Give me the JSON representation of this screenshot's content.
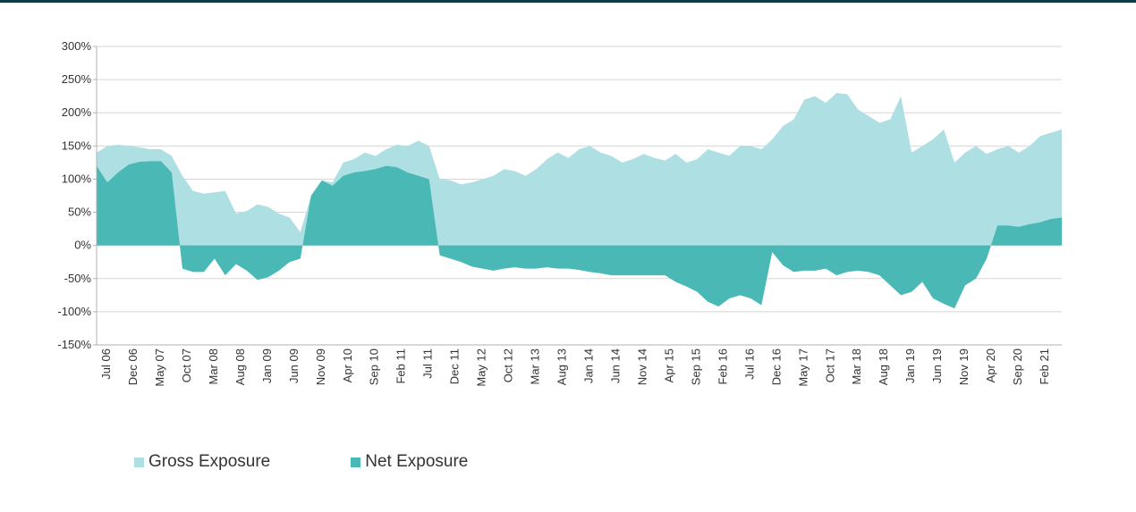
{
  "colors": {
    "gross": "#aee0e3",
    "net": "#4ab9b6",
    "axis": "#b0b0b0",
    "grid": "#d6d6d6",
    "top_rule": "#0e3a44"
  },
  "chart_data": {
    "type": "area",
    "title": "",
    "xlabel": "",
    "ylabel": "",
    "ylim": [
      -150,
      300
    ],
    "grid": true,
    "legend_position": "bottom-left",
    "y_ticks": [
      "300%",
      "250%",
      "200%",
      "150%",
      "100%",
      "50%",
      "0%",
      "-50%",
      "-100%",
      "-150%"
    ],
    "x_tick_labels": [
      "Jul 06",
      "Dec 06",
      "May 07",
      "Oct 07",
      "Mar 08",
      "Aug 08",
      "Jan 09",
      "Jun 09",
      "Nov 09",
      "Apr 10",
      "Sep 10",
      "Feb 11",
      "Jul 11",
      "Dec 11",
      "May 12",
      "Oct 12",
      "Mar 13",
      "Aug 13",
      "Jan 14",
      "Jun 14",
      "Nov 14",
      "Apr 15",
      "Sep 15",
      "Feb 16",
      "Jul 16",
      "Dec 16",
      "May 17",
      "Oct 17",
      "Mar 18",
      "Aug 18",
      "Jan 19",
      "Jun 19",
      "Nov 19",
      "Apr 20",
      "Sep 20",
      "Feb 21"
    ],
    "x": [
      "Jul 06",
      "Sep 06",
      "Nov 06",
      "Jan 07",
      "Mar 07",
      "May 07",
      "Jul 07",
      "Sep 07",
      "Nov 07",
      "Jan 08",
      "Mar 08",
      "May 08",
      "Jul 08",
      "Sep 08",
      "Nov 08",
      "Jan 09",
      "Mar 09",
      "May 09",
      "Jul 09",
      "Sep 09",
      "Nov 09",
      "Jan 10",
      "Mar 10",
      "May 10",
      "Jul 10",
      "Sep 10",
      "Nov 10",
      "Jan 11",
      "Mar 11",
      "May 11",
      "Jul 11",
      "Sep 11",
      "Nov 11",
      "Jan 12",
      "Mar 12",
      "May 12",
      "Jul 12",
      "Sep 12",
      "Nov 12",
      "Jan 13",
      "Mar 13",
      "May 13",
      "Jul 13",
      "Sep 13",
      "Nov 13",
      "Jan 14",
      "Mar 14",
      "May 14",
      "Jul 14",
      "Sep 14",
      "Nov 14",
      "Jan 15",
      "Mar 15",
      "May 15",
      "Jul 15",
      "Sep 15",
      "Nov 15",
      "Jan 16",
      "Mar 16",
      "May 16",
      "Jul 16",
      "Sep 16",
      "Nov 16",
      "Jan 17",
      "Mar 17",
      "May 17",
      "Jul 17",
      "Sep 17",
      "Nov 17",
      "Jan 18",
      "Mar 18",
      "May 18",
      "Jul 18",
      "Sep 18",
      "Nov 18",
      "Jan 19",
      "Mar 19",
      "May 19",
      "Jul 19",
      "Sep 19",
      "Nov 19",
      "Jan 20",
      "Mar 20",
      "May 20",
      "Jul 20",
      "Sep 20",
      "Nov 20",
      "Jan 21",
      "Mar 21",
      "May 21",
      "Jul 21"
    ],
    "series": [
      {
        "name": "Gross Exposure",
        "values": [
          140,
          150,
          152,
          150,
          148,
          145,
          145,
          135,
          105,
          82,
          78,
          80,
          82,
          48,
          52,
          62,
          58,
          48,
          42,
          20,
          75,
          98,
          95,
          125,
          130,
          140,
          135,
          145,
          152,
          150,
          158,
          150,
          100,
          98,
          92,
          95,
          100,
          105,
          115,
          112,
          105,
          115,
          130,
          140,
          132,
          145,
          150,
          140,
          135,
          125,
          130,
          138,
          132,
          128,
          138,
          125,
          130,
          145,
          140,
          135,
          150,
          150,
          145,
          160,
          180,
          190,
          220,
          225,
          215,
          230,
          228,
          205,
          195,
          185,
          190,
          225,
          140,
          150,
          160,
          175,
          125,
          140,
          150,
          138,
          145,
          150,
          140,
          150,
          165,
          170,
          175
        ]
      },
      {
        "name": "Net Exposure",
        "values": [
          120,
          95,
          110,
          122,
          126,
          127,
          127,
          110,
          -35,
          -40,
          -40,
          -20,
          -45,
          -28,
          -38,
          -52,
          -48,
          -38,
          -25,
          -20,
          75,
          98,
          90,
          105,
          110,
          112,
          115,
          120,
          118,
          110,
          105,
          100,
          -15,
          -20,
          -25,
          -32,
          -35,
          -38,
          -35,
          -33,
          -35,
          -35,
          -33,
          -35,
          -35,
          -37,
          -40,
          -42,
          -45,
          -45,
          -45,
          -45,
          -45,
          -45,
          -55,
          -62,
          -70,
          -85,
          -92,
          -80,
          -75,
          -80,
          -90,
          -10,
          -30,
          -40,
          -38,
          -38,
          -35,
          -45,
          -40,
          -38,
          -40,
          -45,
          -60,
          -75,
          -70,
          -55,
          -80,
          -88,
          -95,
          -60,
          -50,
          -20,
          30,
          30,
          28,
          32,
          35,
          40,
          42
        ]
      }
    ]
  },
  "legend": {
    "gross_label": "Gross Exposure",
    "net_label": "Net Exposure"
  }
}
